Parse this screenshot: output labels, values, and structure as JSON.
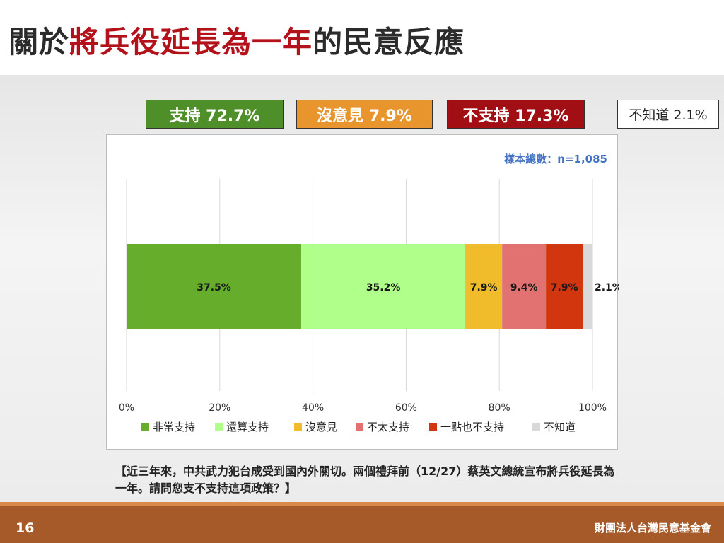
{
  "title": {
    "prefix": "關於",
    "highlight": "將兵役延長為一年",
    "suffix": "的民意反應"
  },
  "summary": {
    "support": "支持 72.7%",
    "neutral": "沒意見 7.9%",
    "oppose": "不支持 17.3%",
    "dont_know": "不知道 2.1%"
  },
  "chart_data": {
    "type": "bar",
    "orientation": "horizontal-stacked",
    "title": "",
    "sample_note": "樣本總數：n=1,085",
    "xlim": [
      0,
      100
    ],
    "x_ticks": [
      "0%",
      "20%",
      "40%",
      "60%",
      "80%",
      "100%"
    ],
    "grid": true,
    "legend_position": "bottom",
    "series": [
      {
        "name": "非常支持",
        "value": 37.5,
        "label": "37.5%",
        "color": "#66ad2c"
      },
      {
        "name": "還算支持",
        "value": 35.2,
        "label": "35.2%",
        "color": "#b0ff8a"
      },
      {
        "name": "沒意見",
        "value": 7.9,
        "label": "7.9%",
        "color": "#f1bc2b"
      },
      {
        "name": "不太支持",
        "value": 9.4,
        "label": "9.4%",
        "color": "#e27171"
      },
      {
        "name": "一點也不支持",
        "value": 7.9,
        "label": "7.9%",
        "color": "#d2360e"
      },
      {
        "name": "不知道",
        "value": 2.1,
        "label": "2.1%",
        "color": "#d9d9d9"
      }
    ]
  },
  "question": "【近三年來，中共武力犯台成受到國內外關切。兩個禮拜前（12/27）蔡英文總統宣布將兵役延長為一年。請問您支不支持這項政策？】",
  "footer": {
    "page": "16",
    "org": "財團法人台灣民意基金會"
  }
}
